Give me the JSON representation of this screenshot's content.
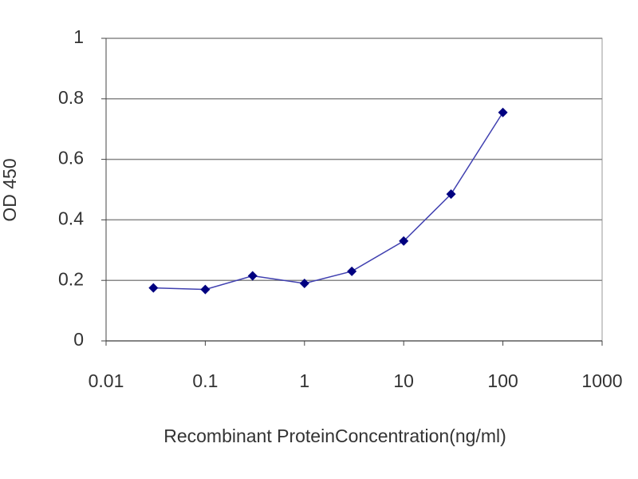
{
  "chart_data": {
    "type": "line",
    "x_label": "Recombinant ProteinConcentration(ng/ml)",
    "y_label": "OD 450",
    "x": [
      0.03,
      0.1,
      0.3,
      1,
      3,
      10,
      30,
      100
    ],
    "series": [
      {
        "color": "#000080",
        "line_color": "#4040b0",
        "values": [
          0.175,
          0.17,
          0.215,
          0.19,
          0.23,
          0.33,
          0.485,
          0.755
        ]
      }
    ],
    "x_log": true,
    "xlim": [
      0.01,
      1000
    ],
    "xticks": [
      0.01,
      0.1,
      1,
      10,
      100,
      1000
    ],
    "ylim": [
      0,
      1
    ],
    "yticks": [
      0,
      0.2,
      0.4,
      0.6,
      0.8,
      1
    ],
    "grid": true
  }
}
